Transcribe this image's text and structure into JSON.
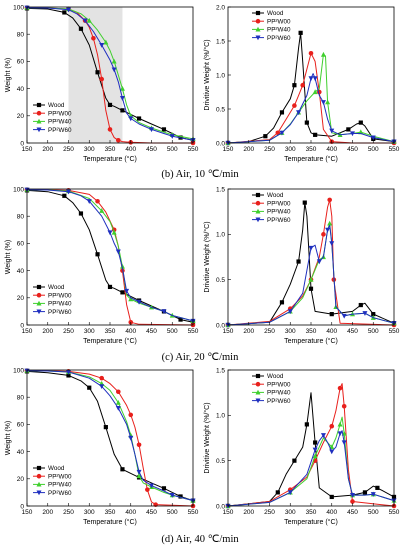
{
  "colors": {
    "wood": "#000000",
    "pp00": "#e8201c",
    "pp40": "#3fcf2d",
    "pp60": "#1f2fbf",
    "shade": "#e3e3e3"
  },
  "legend": [
    "Wood",
    "PP²W00",
    "PP²W40",
    "PP²W60"
  ],
  "captions": [
    "(b) Air, 10 ℃/min",
    "(c) Air, 20 ℃/min",
    "(d) Air, 40 ℃/min"
  ],
  "chart_data": [
    {
      "type": "line",
      "panel": "b-tg",
      "xlabel": "Temperature (°C)",
      "ylabel": "Weight (%)",
      "xlim": [
        150,
        550
      ],
      "ylim": [
        0,
        100
      ],
      "xticks": [
        150,
        200,
        250,
        300,
        350,
        400,
        450,
        500,
        550
      ],
      "yticks": [
        0,
        20,
        40,
        60,
        80,
        100
      ],
      "shaded": [
        250,
        380
      ],
      "legend_position": "bottom-left",
      "series": [
        {
          "name": "Wood",
          "x": [
            150,
            200,
            240,
            260,
            280,
            300,
            320,
            340,
            350,
            360,
            380,
            400,
            420,
            450,
            480,
            500,
            520,
            550
          ],
          "y": [
            99,
            98.5,
            96,
            92,
            84,
            72,
            52,
            33,
            28,
            27,
            24,
            21,
            18,
            14,
            10,
            7,
            4,
            2
          ]
        },
        {
          "name": "PP²W00",
          "x": [
            150,
            200,
            250,
            270,
            290,
            300,
            310,
            320,
            330,
            340,
            350,
            360,
            370,
            380,
            400,
            450,
            550
          ],
          "y": [
            99.5,
            99.3,
            98.5,
            96,
            90,
            85,
            77,
            65,
            47,
            24,
            10,
            4,
            2,
            1,
            0.5,
            0,
            0
          ]
        },
        {
          "name": "PP²W40",
          "x": [
            150,
            200,
            250,
            280,
            300,
            320,
            340,
            350,
            360,
            370,
            380,
            390,
            400,
            420,
            450,
            480,
            500,
            550
          ],
          "y": [
            99.5,
            99.3,
            98.5,
            95,
            90,
            83,
            74,
            68,
            60,
            50,
            40,
            28,
            20,
            15,
            11,
            8,
            6,
            3
          ]
        },
        {
          "name": "PP²W60",
          "x": [
            150,
            200,
            250,
            270,
            290,
            310,
            330,
            350,
            360,
            370,
            380,
            390,
            400,
            420,
            450,
            480,
            500,
            550
          ],
          "y": [
            99.5,
            99.3,
            98,
            95,
            90,
            82,
            72,
            61,
            54,
            45,
            33,
            22,
            18,
            14,
            10,
            7,
            5,
            2
          ]
        }
      ]
    },
    {
      "type": "line",
      "panel": "b-dtg",
      "xlabel": "Temperature (°C)",
      "ylabel": "Drivitive Weight (%/°C)",
      "xlim": [
        150,
        550
      ],
      "ylim": [
        0,
        2.0
      ],
      "xticks": [
        150,
        200,
        250,
        300,
        350,
        400,
        450,
        500,
        550
      ],
      "yticks": [
        0,
        0.5,
        1.0,
        1.5,
        2.0
      ],
      "legend_position": "top-left",
      "series": [
        {
          "name": "Wood",
          "x": [
            150,
            200,
            240,
            260,
            280,
            300,
            310,
            320,
            325,
            330,
            340,
            350,
            360,
            400,
            440,
            460,
            470,
            480,
            500,
            550
          ],
          "y": [
            0,
            0.02,
            0.1,
            0.22,
            0.45,
            0.65,
            0.85,
            1.4,
            1.62,
            1.2,
            0.3,
            0.15,
            0.12,
            0.1,
            0.2,
            0.28,
            0.3,
            0.25,
            0.06,
            0.02
          ]
        },
        {
          "name": "PP²W00",
          "x": [
            150,
            250,
            270,
            290,
            310,
            320,
            330,
            345,
            350,
            360,
            370,
            380,
            400,
            450,
            550
          ],
          "y": [
            0,
            0.05,
            0.15,
            0.35,
            0.55,
            0.7,
            0.85,
            1.2,
            1.32,
            1.2,
            0.75,
            0.2,
            0.02,
            0,
            0
          ]
        },
        {
          "name": "PP²W40",
          "x": [
            150,
            250,
            280,
            300,
            320,
            340,
            360,
            370,
            380,
            385,
            390,
            400,
            420,
            450,
            470,
            500,
            550
          ],
          "y": [
            0,
            0.04,
            0.15,
            0.28,
            0.45,
            0.62,
            0.75,
            0.8,
            1.3,
            1.28,
            0.6,
            0.15,
            0.12,
            0.14,
            0.16,
            0.1,
            0.02
          ]
        },
        {
          "name": "PP²W60",
          "x": [
            150,
            250,
            280,
            300,
            320,
            340,
            350,
            355,
            360,
            370,
            380,
            390,
            400,
            420,
            450,
            470,
            500,
            550
          ],
          "y": [
            0,
            0.04,
            0.15,
            0.27,
            0.45,
            0.7,
            0.95,
            1.02,
            0.95,
            0.7,
            0.6,
            0.35,
            0.18,
            0.12,
            0.14,
            0.14,
            0.08,
            0.02
          ]
        }
      ]
    },
    {
      "type": "line",
      "panel": "c-tg",
      "xlabel": "Temperature (°C)",
      "ylabel": "Weight (%)",
      "xlim": [
        150,
        550
      ],
      "ylim": [
        0,
        100
      ],
      "xticks": [
        150,
        200,
        250,
        300,
        350,
        400,
        450,
        500,
        550
      ],
      "yticks": [
        0,
        20,
        40,
        60,
        80,
        100
      ],
      "legend_position": "bottom-left",
      "series": [
        {
          "name": "Wood",
          "x": [
            150,
            200,
            240,
            260,
            280,
            300,
            320,
            340,
            350,
            360,
            380,
            400,
            420,
            450,
            480,
            500,
            520,
            550
          ],
          "y": [
            99,
            98,
            95,
            90,
            82,
            70,
            52,
            33,
            28,
            27,
            24,
            21,
            18,
            14,
            10,
            7,
            4,
            2
          ]
        },
        {
          "name": "PP²W00",
          "x": [
            150,
            200,
            250,
            300,
            320,
            340,
            360,
            370,
            380,
            390,
            400,
            420,
            550
          ],
          "y": [
            99.5,
            99.5,
            99,
            96,
            91,
            83,
            70,
            58,
            40,
            15,
            2,
            0.5,
            0
          ]
        },
        {
          "name": "PP²W40",
          "x": [
            150,
            200,
            250,
            300,
            330,
            350,
            360,
            370,
            380,
            390,
            400,
            420,
            450,
            480,
            500,
            550
          ],
          "y": [
            99.5,
            99.3,
            98.5,
            93,
            84,
            76,
            68,
            58,
            43,
            22,
            19,
            16,
            13,
            10,
            7,
            3
          ]
        },
        {
          "name": "PP²W60",
          "x": [
            150,
            200,
            250,
            280,
            300,
            330,
            350,
            360,
            370,
            380,
            390,
            400,
            420,
            450,
            480,
            500,
            550
          ],
          "y": [
            99.5,
            99.3,
            98,
            95,
            91,
            80,
            68,
            60,
            54,
            42,
            25,
            20,
            17,
            13,
            10,
            7,
            3
          ]
        }
      ]
    },
    {
      "type": "line",
      "panel": "c-dtg",
      "xlabel": "Temperature (°C)",
      "ylabel": "Drivitive Weight (%/°C)",
      "xlim": [
        150,
        550
      ],
      "ylim": [
        0,
        1.5
      ],
      "xticks": [
        150,
        200,
        250,
        300,
        350,
        400,
        450,
        500,
        550
      ],
      "yticks": [
        0,
        0.5,
        1.0,
        1.5
      ],
      "legend_position": "top-left",
      "series": [
        {
          "name": "Wood",
          "x": [
            150,
            250,
            280,
            300,
            320,
            330,
            335,
            340,
            350,
            360,
            400,
            450,
            470,
            480,
            500,
            550
          ],
          "y": [
            0,
            0.03,
            0.25,
            0.45,
            0.7,
            1.05,
            1.35,
            1.2,
            0.4,
            0.15,
            0.12,
            0.15,
            0.22,
            0.24,
            0.12,
            0.02
          ]
        },
        {
          "name": "PP²W00",
          "x": [
            150,
            250,
            300,
            330,
            350,
            370,
            380,
            390,
            395,
            400,
            405,
            420,
            550
          ],
          "y": [
            0,
            0.04,
            0.18,
            0.32,
            0.5,
            0.75,
            1.0,
            1.3,
            1.38,
            1.2,
            0.5,
            0.02,
            0
          ]
        },
        {
          "name": "PP²W40",
          "x": [
            150,
            250,
            300,
            330,
            350,
            370,
            380,
            390,
            395,
            400,
            410,
            430,
            450,
            480,
            500,
            550
          ],
          "y": [
            0,
            0.03,
            0.15,
            0.3,
            0.5,
            0.72,
            0.75,
            1.05,
            1.12,
            0.9,
            0.2,
            0.1,
            0.12,
            0.13,
            0.08,
            0.02
          ]
        },
        {
          "name": "PP²W60",
          "x": [
            150,
            250,
            300,
            330,
            350,
            360,
            370,
            380,
            390,
            395,
            400,
            410,
            430,
            450,
            480,
            500,
            550
          ],
          "y": [
            0,
            0.03,
            0.15,
            0.35,
            0.85,
            0.88,
            0.7,
            0.75,
            1.05,
            1.1,
            0.9,
            0.2,
            0.1,
            0.12,
            0.13,
            0.08,
            0.02
          ]
        }
      ]
    },
    {
      "type": "line",
      "panel": "d-tg",
      "xlabel": "Temperature (°C)",
      "ylabel": "Weight (%)",
      "xlim": [
        150,
        550
      ],
      "ylim": [
        0,
        100
      ],
      "xticks": [
        150,
        200,
        250,
        300,
        350,
        400,
        450,
        500,
        550
      ],
      "yticks": [
        0,
        20,
        40,
        60,
        80,
        100
      ],
      "legend_position": "bottom-left",
      "series": [
        {
          "name": "Wood",
          "x": [
            150,
            200,
            250,
            280,
            300,
            320,
            340,
            360,
            380,
            400,
            420,
            450,
            480,
            500,
            520,
            550
          ],
          "y": [
            99,
            98,
            96,
            92,
            87,
            77,
            58,
            38,
            27,
            24,
            21,
            17,
            13,
            10,
            7,
            4
          ]
        },
        {
          "name": "PP²W00",
          "x": [
            150,
            200,
            250,
            300,
            330,
            350,
            370,
            390,
            400,
            410,
            420,
            430,
            440,
            450,
            460,
            550
          ],
          "y": [
            99.5,
            99.5,
            99,
            97,
            94,
            90,
            84,
            74,
            67,
            58,
            45,
            28,
            12,
            3,
            1,
            0
          ]
        },
        {
          "name": "PP²W40",
          "x": [
            150,
            200,
            250,
            300,
            330,
            350,
            370,
            390,
            400,
            410,
            420,
            430,
            450,
            480,
            500,
            550
          ],
          "y": [
            99.5,
            99.3,
            98.5,
            95,
            90,
            85,
            76,
            62,
            52,
            38,
            22,
            17,
            14,
            10,
            8,
            4
          ]
        },
        {
          "name": "PP²W60",
          "x": [
            150,
            200,
            250,
            300,
            330,
            350,
            370,
            390,
            400,
            410,
            420,
            430,
            450,
            480,
            500,
            550
          ],
          "y": [
            99.5,
            99.3,
            98.5,
            94,
            88,
            81,
            72,
            60,
            50,
            38,
            25,
            19,
            15,
            11,
            8,
            4
          ]
        }
      ]
    },
    {
      "type": "line",
      "panel": "d-dtg",
      "xlabel": "Temperature (°C)",
      "ylabel": "Drivitive Weight (%/°C)",
      "xlim": [
        150,
        550
      ],
      "ylim": [
        0,
        1.5
      ],
      "xticks": [
        150,
        200,
        250,
        300,
        350,
        400,
        450,
        500,
        550
      ],
      "yticks": [
        0,
        0.5,
        1.0,
        1.5
      ],
      "legend_position": "top-left",
      "series": [
        {
          "name": "Wood",
          "x": [
            150,
            250,
            270,
            290,
            310,
            330,
            340,
            350,
            360,
            370,
            400,
            450,
            480,
            500,
            510,
            550
          ],
          "y": [
            0,
            0.05,
            0.15,
            0.35,
            0.5,
            0.65,
            0.9,
            1.25,
            0.7,
            0.2,
            0.1,
            0.12,
            0.15,
            0.22,
            0.2,
            0.1
          ]
        },
        {
          "name": "PP²W00",
          "x": [
            150,
            250,
            300,
            340,
            360,
            380,
            400,
            410,
            420,
            425,
            430,
            440,
            450,
            550
          ],
          "y": [
            0,
            0.05,
            0.18,
            0.32,
            0.5,
            0.7,
            0.88,
            1.05,
            1.3,
            1.35,
            1.1,
            0.4,
            0.05,
            0
          ]
        },
        {
          "name": "PP²W40",
          "x": [
            150,
            250,
            300,
            340,
            360,
            380,
            400,
            410,
            420,
            425,
            430,
            440,
            450,
            480,
            500,
            550
          ],
          "y": [
            0,
            0.04,
            0.15,
            0.3,
            0.55,
            0.75,
            0.65,
            0.75,
            0.9,
            0.98,
            0.8,
            0.3,
            0.12,
            0.12,
            0.13,
            0.06
          ]
        },
        {
          "name": "PP²W60",
          "x": [
            150,
            250,
            300,
            340,
            360,
            370,
            380,
            390,
            400,
            410,
            420,
            425,
            430,
            440,
            450,
            480,
            500,
            550
          ],
          "y": [
            0,
            0.04,
            0.15,
            0.35,
            0.62,
            0.72,
            0.78,
            0.7,
            0.6,
            0.65,
            0.8,
            0.83,
            0.7,
            0.3,
            0.12,
            0.12,
            0.13,
            0.06
          ]
        }
      ]
    }
  ]
}
